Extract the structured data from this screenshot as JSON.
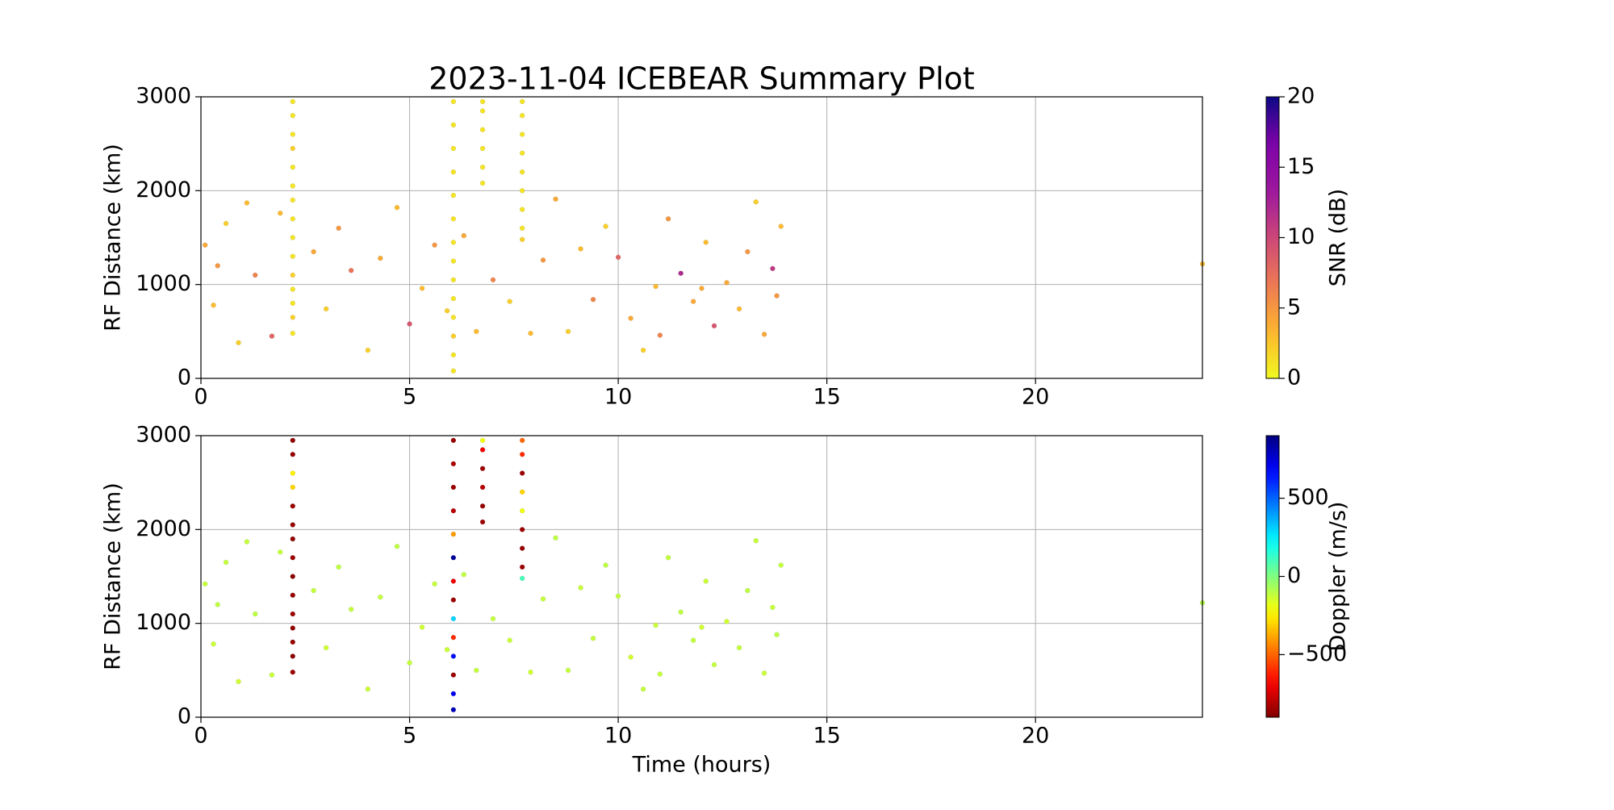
{
  "chart_data": [
    {
      "type": "scatter",
      "title": "2023-11-04 ICEBEAR Summary Plot",
      "ylabel": "RF Distance (km)",
      "xlim": [
        0,
        24
      ],
      "xticks": [
        0,
        5,
        10,
        15,
        20
      ],
      "ylim": [
        0,
        3000
      ],
      "yticks": [
        0,
        1000,
        2000,
        3000
      ],
      "grid": true,
      "x": [
        2.2,
        2.2,
        2.2,
        2.2,
        2.2,
        2.2,
        2.2,
        2.2,
        2.2,
        2.2,
        2.2,
        2.2,
        2.2,
        2.2,
        2.2,
        6.05,
        6.05,
        6.05,
        6.05,
        6.05,
        6.05,
        6.05,
        6.05,
        6.05,
        6.05,
        6.05,
        6.05,
        6.05,
        6.05,
        6.75,
        6.75,
        6.75,
        6.75,
        6.75,
        6.75,
        7.7,
        7.7,
        7.7,
        7.7,
        7.7,
        7.7,
        7.7,
        7.7,
        7.7,
        0.1,
        0.3,
        0.4,
        0.6,
        0.9,
        1.1,
        1.3,
        1.7,
        1.9,
        2.7,
        3.0,
        3.3,
        3.6,
        4.0,
        4.3,
        4.7,
        5.0,
        5.3,
        5.6,
        5.9,
        6.3,
        6.6,
        7.0,
        7.4,
        7.9,
        8.2,
        8.5,
        8.8,
        9.1,
        9.4,
        9.7,
        10.0,
        10.3,
        10.6,
        10.9,
        11.2,
        11.5,
        11.8,
        12.1,
        12.3,
        12.6,
        12.9,
        13.1,
        13.3,
        13.5,
        13.7,
        13.9,
        13.8,
        12.0,
        11.0,
        24
      ],
      "values": [
        480,
        650,
        800,
        950,
        1100,
        1300,
        1500,
        1700,
        1900,
        2050,
        2250,
        2450,
        2600,
        2800,
        2950,
        80,
        250,
        450,
        650,
        850,
        1050,
        1250,
        1450,
        1700,
        1950,
        2200,
        2450,
        2700,
        2950,
        2080,
        2250,
        2450,
        2650,
        2850,
        2950,
        1480,
        1600,
        1800,
        2000,
        2200,
        2400,
        2600,
        2800,
        2950,
        1420,
        780,
        1200,
        1650,
        380,
        1870,
        1100,
        450,
        1760,
        1350,
        740,
        1600,
        1150,
        300,
        1280,
        1820,
        580,
        960,
        1420,
        720,
        1520,
        500,
        1050,
        820,
        480,
        1260,
        1910,
        500,
        1380,
        840,
        1620,
        1290,
        640,
        300,
        980,
        1700,
        1120,
        820,
        1450,
        560,
        1020,
        740,
        1350,
        1880,
        470,
        1170,
        1620,
        880,
        960,
        460,
        1220
      ],
      "c": [
        1,
        2,
        1,
        1,
        2,
        1,
        1,
        1,
        1,
        1,
        1,
        2,
        1,
        1,
        1,
        1,
        1,
        2,
        1,
        1,
        1,
        1,
        1,
        1,
        1,
        1,
        1,
        1,
        1,
        1,
        1,
        1,
        1,
        1,
        1,
        2,
        1,
        1,
        1,
        1,
        1,
        1,
        1,
        1,
        4,
        3,
        5,
        2,
        2,
        3,
        6,
        8,
        3,
        4,
        2,
        5,
        7,
        2,
        4,
        3,
        9,
        3,
        5,
        2,
        4,
        3,
        6,
        2,
        3,
        5,
        4,
        2,
        3,
        6,
        2,
        8,
        4,
        2,
        3,
        5,
        12,
        4,
        3,
        9,
        4,
        3,
        5,
        2,
        4,
        11,
        3,
        5,
        4,
        6,
        3
      ],
      "colorbar": {
        "label": "SNR (dB)",
        "colormap": "plasma_r",
        "lim": [
          0,
          20
        ],
        "ticks": [
          0,
          5,
          10,
          15,
          20
        ]
      }
    },
    {
      "type": "scatter",
      "ylabel": "RF Distance (km)",
      "xlabel": "Time (hours)",
      "xlim": [
        0,
        24
      ],
      "xticks": [
        0,
        5,
        10,
        15,
        20
      ],
      "ylim": [
        0,
        3000
      ],
      "yticks": [
        0,
        1000,
        2000,
        3000
      ],
      "grid": true,
      "x": [
        2.2,
        2.2,
        2.2,
        2.2,
        2.2,
        2.2,
        2.2,
        2.2,
        2.2,
        2.2,
        2.2,
        2.2,
        2.2,
        2.2,
        2.2,
        6.05,
        6.05,
        6.05,
        6.05,
        6.05,
        6.05,
        6.05,
        6.05,
        6.05,
        6.05,
        6.05,
        6.05,
        6.05,
        6.05,
        6.75,
        6.75,
        6.75,
        6.75,
        6.75,
        6.75,
        7.7,
        7.7,
        7.7,
        7.7,
        7.7,
        7.7,
        7.7,
        7.7,
        7.7,
        0.1,
        0.3,
        0.4,
        0.6,
        0.9,
        1.1,
        1.3,
        1.7,
        1.9,
        2.7,
        3.0,
        3.3,
        3.6,
        4.0,
        4.3,
        4.7,
        5.0,
        5.3,
        5.6,
        5.9,
        6.3,
        6.6,
        7.0,
        7.4,
        7.9,
        8.2,
        8.5,
        8.8,
        9.1,
        9.4,
        9.7,
        10.0,
        10.3,
        10.6,
        10.9,
        11.2,
        11.5,
        11.8,
        12.1,
        12.3,
        12.6,
        12.9,
        13.1,
        13.3,
        13.5,
        13.7,
        13.9,
        13.8,
        12.0,
        11.0,
        24
      ],
      "values": [
        480,
        650,
        800,
        950,
        1100,
        1300,
        1500,
        1700,
        1900,
        2050,
        2250,
        2450,
        2600,
        2800,
        2950,
        80,
        250,
        450,
        650,
        850,
        1050,
        1250,
        1450,
        1700,
        1950,
        2200,
        2450,
        2700,
        2950,
        2080,
        2250,
        2450,
        2650,
        2850,
        2950,
        1480,
        1600,
        1800,
        2000,
        2200,
        2400,
        2600,
        2800,
        2950,
        1420,
        780,
        1200,
        1650,
        380,
        1870,
        1100,
        450,
        1760,
        1350,
        740,
        1600,
        1150,
        300,
        1280,
        1820,
        580,
        960,
        1420,
        720,
        1520,
        500,
        1050,
        820,
        480,
        1260,
        1910,
        500,
        1380,
        840,
        1620,
        1290,
        640,
        300,
        980,
        1700,
        1120,
        820,
        1450,
        560,
        1020,
        740,
        1350,
        1880,
        470,
        1170,
        1620,
        880,
        960,
        460,
        1220
      ],
      "c": [
        -850,
        -880,
        -860,
        -870,
        -850,
        -860,
        -880,
        -850,
        -870,
        -860,
        -850,
        -300,
        -250,
        -860,
        -870,
        800,
        700,
        -850,
        650,
        -600,
        300,
        -850,
        -700,
        850,
        -400,
        -800,
        -850,
        -820,
        -860,
        -850,
        -860,
        -800,
        -850,
        -700,
        -200,
        100,
        -850,
        -860,
        -850,
        -200,
        -300,
        -850,
        -600,
        -500,
        -120,
        -130,
        -110,
        -120,
        -140,
        -120,
        -110,
        -130,
        -120,
        -120,
        -140,
        -110,
        -120,
        -130,
        -120,
        -110,
        -120,
        -140,
        -120,
        -130,
        -110,
        -120,
        -120,
        -130,
        -140,
        -120,
        -110,
        -120,
        -130,
        -120,
        -110,
        -120,
        -140,
        -120,
        -130,
        -120,
        -110,
        -120,
        -130,
        -120,
        -140,
        -120,
        -110,
        -120,
        -130,
        -120,
        -120,
        -110,
        -140,
        -120,
        -100
      ],
      "colorbar": {
        "label": "Doppler (m/s)",
        "colormap": "jet_r",
        "lim": [
          -900,
          900
        ],
        "ticks": [
          {
            "value": -500,
            "label": "−500"
          },
          0,
          500
        ]
      }
    }
  ]
}
